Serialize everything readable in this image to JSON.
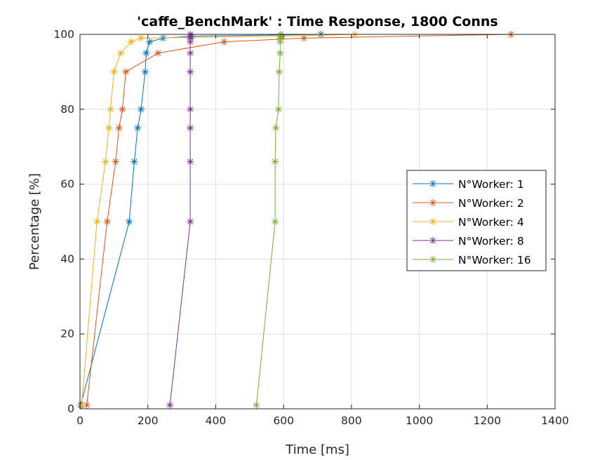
{
  "chart_data": {
    "type": "line",
    "title": "'caffe_BenchMark' : Time Response, 1800 Conns",
    "xlabel": "Time [ms]",
    "ylabel": "Percentage [%]",
    "xlim": [
      0,
      1400
    ],
    "ylim": [
      0,
      100
    ],
    "xticks": [
      0,
      200,
      400,
      600,
      800,
      1000,
      1200,
      1400
    ],
    "yticks": [
      0,
      20,
      40,
      60,
      80,
      100
    ],
    "xtick_labels": [
      "0",
      "200",
      "400",
      "600",
      "800",
      "1000",
      "1200",
      "1400"
    ],
    "ytick_labels": [
      "0",
      "20",
      "40",
      "60",
      "80",
      "100"
    ],
    "grid": true,
    "legend_position": "right",
    "marker": "asterisk",
    "series": [
      {
        "name": "N°Worker: 1",
        "color": "#0072BD",
        "points": [
          [
            2,
            1
          ],
          [
            145,
            50
          ],
          [
            160,
            66
          ],
          [
            170,
            75
          ],
          [
            180,
            80
          ],
          [
            192,
            90
          ],
          [
            195,
            95
          ],
          [
            205,
            98
          ],
          [
            245,
            99
          ],
          [
            330,
            99.5
          ],
          [
            710,
            100
          ]
        ]
      },
      {
        "name": "N°Worker: 2",
        "color": "#D95319",
        "points": [
          [
            20,
            1
          ],
          [
            80,
            50
          ],
          [
            105,
            66
          ],
          [
            115,
            75
          ],
          [
            125,
            80
          ],
          [
            135,
            90
          ],
          [
            230,
            95
          ],
          [
            425,
            98
          ],
          [
            660,
            99
          ],
          [
            1270,
            100
          ]
        ]
      },
      {
        "name": "N°Worker: 4",
        "color": "#EDB120",
        "points": [
          [
            5,
            1
          ],
          [
            50,
            50
          ],
          [
            75,
            66
          ],
          [
            85,
            75
          ],
          [
            90,
            80
          ],
          [
            100,
            90
          ],
          [
            120,
            95
          ],
          [
            150,
            98
          ],
          [
            180,
            99
          ],
          [
            590,
            99.5
          ],
          [
            810,
            100
          ]
        ]
      },
      {
        "name": "N°Worker: 8",
        "color": "#7E2F8E",
        "points": [
          [
            265,
            1
          ],
          [
            325,
            50
          ],
          [
            325,
            66
          ],
          [
            325,
            75
          ],
          [
            325,
            80
          ],
          [
            325,
            90
          ],
          [
            325,
            95
          ],
          [
            325,
            98
          ],
          [
            325,
            99
          ],
          [
            325,
            99.5
          ],
          [
            325,
            100
          ]
        ]
      },
      {
        "name": "N°Worker: 16",
        "color": "#77AC30",
        "points": [
          [
            520,
            1
          ],
          [
            575,
            50
          ],
          [
            575,
            66
          ],
          [
            577,
            75
          ],
          [
            585,
            80
          ],
          [
            587,
            90
          ],
          [
            590,
            95
          ],
          [
            590,
            98
          ],
          [
            590,
            99
          ],
          [
            592,
            99.5
          ],
          [
            592,
            100
          ]
        ]
      }
    ]
  }
}
